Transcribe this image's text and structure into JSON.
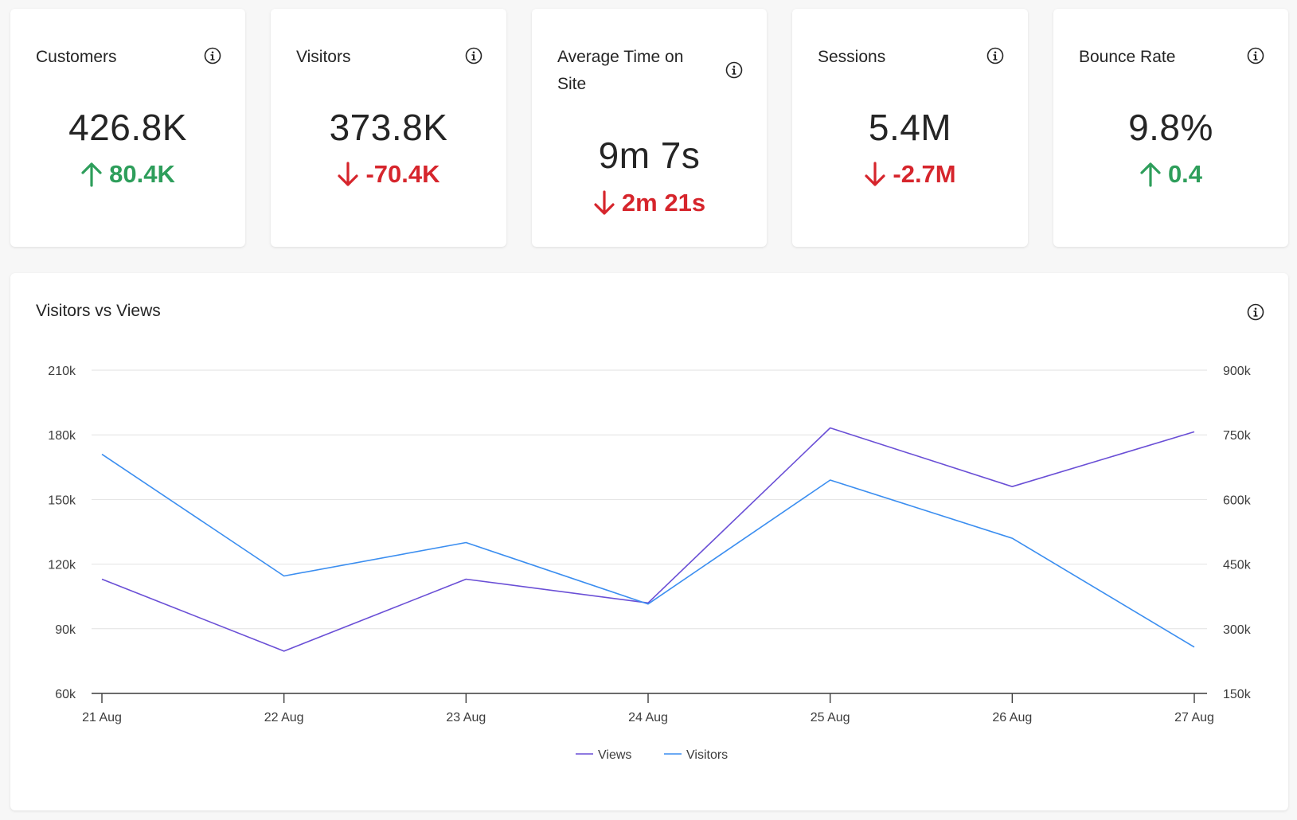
{
  "kpis": [
    {
      "title": "Customers",
      "value": "426.8K",
      "delta": "80.4K",
      "direction": "up"
    },
    {
      "title": "Visitors",
      "value": "373.8K",
      "delta": "-70.4K",
      "direction": "down"
    },
    {
      "title": "Average Time on Site",
      "value": "9m 7s",
      "delta": "2m 21s",
      "direction": "down"
    },
    {
      "title": "Sessions",
      "value": "5.4M",
      "delta": "-2.7M",
      "direction": "down"
    },
    {
      "title": "Bounce Rate",
      "value": "9.8%",
      "delta": "0.4",
      "direction": "up"
    }
  ],
  "colors": {
    "up": "#2e9e5b",
    "down": "#d6252c",
    "views": "#6a4fd6",
    "visitors": "#3b8ef0",
    "grid": "#e2e2e2",
    "axis": "#3c3c3c"
  },
  "icons": {
    "info": "info-circle-icon",
    "up": "arrow-up-icon",
    "down": "arrow-down-icon"
  },
  "chart_data": {
    "type": "line",
    "title": "Visitors vs Views",
    "x": [
      "21 Aug",
      "22 Aug",
      "23 Aug",
      "24 Aug",
      "25 Aug",
      "26 Aug",
      "27 Aug"
    ],
    "y_left": {
      "ticks": [
        "60k",
        "90k",
        "120k",
        "150k",
        "180k",
        "210k"
      ],
      "range": [
        60000,
        210000
      ]
    },
    "y_right": {
      "ticks": [
        "150k",
        "300k",
        "450k",
        "600k",
        "750k",
        "900k"
      ],
      "range": [
        150000,
        900000
      ]
    },
    "grid": true,
    "legend": "bottom-center",
    "series": [
      {
        "name": "Views",
        "axis": "right",
        "values": [
          415000,
          248000,
          415000,
          360000,
          766000,
          630000,
          757000
        ]
      },
      {
        "name": "Visitors",
        "axis": "left",
        "values": [
          171000,
          114500,
          130000,
          101500,
          159000,
          132000,
          81500
        ]
      }
    ]
  }
}
